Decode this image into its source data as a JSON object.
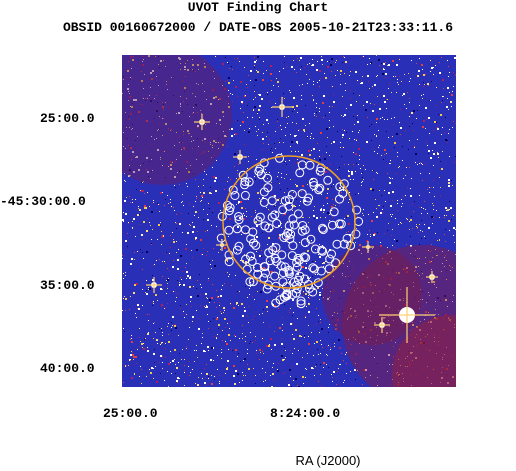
{
  "header": {
    "title": "UVOT Finding Chart",
    "subtitle": "OBSID 00160672000 / DATE-OBS 2005-10-21T23:33:11.6"
  },
  "axes": {
    "dec_ticks": [
      "25:00.0",
      "-45:30:00.0",
      "35:00.0",
      "40:00.0"
    ],
    "ra_ticks": [
      "25:00.0",
      "8:24:00.0"
    ],
    "xlabel": "RA (J2000)"
  },
  "colors": {
    "background": "#2a2fb8",
    "circle": "#f0a020",
    "sources": "#ffffff"
  }
}
